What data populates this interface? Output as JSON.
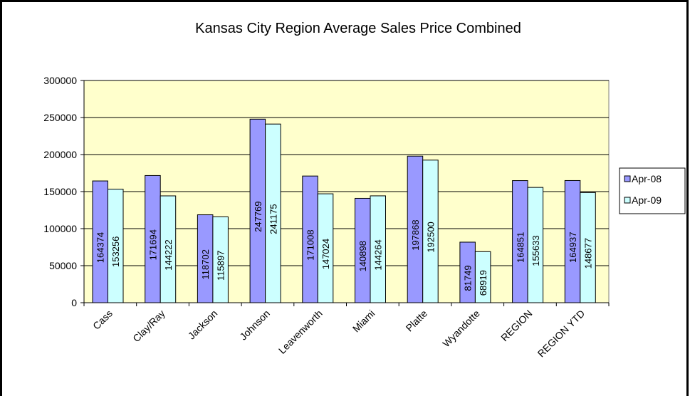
{
  "chart_data": {
    "type": "bar",
    "title": "Kansas City Region Average Sales Price Combined",
    "categories": [
      "Cass",
      "Clay/Ray",
      "Jackson",
      "Johnson",
      "Leavenworth",
      "Miami",
      "Platte",
      "Wyandotte",
      "REGION",
      "REGION YTD"
    ],
    "series": [
      {
        "name": "Apr-08",
        "color": "#9999ff",
        "values": [
          164374,
          171694,
          118702,
          247769,
          171008,
          140898,
          197868,
          81749,
          164851,
          164937
        ]
      },
      {
        "name": "Apr-09",
        "color": "#ccffff",
        "values": [
          153256,
          144222,
          115897,
          241175,
          147024,
          144264,
          192500,
          68919,
          155633,
          148677
        ]
      }
    ],
    "ylim": [
      0,
      300000
    ],
    "yticks": [
      0,
      50000,
      100000,
      150000,
      200000,
      250000,
      300000
    ],
    "grid": true,
    "legend": "right",
    "plot_background": "#ffffcc"
  }
}
